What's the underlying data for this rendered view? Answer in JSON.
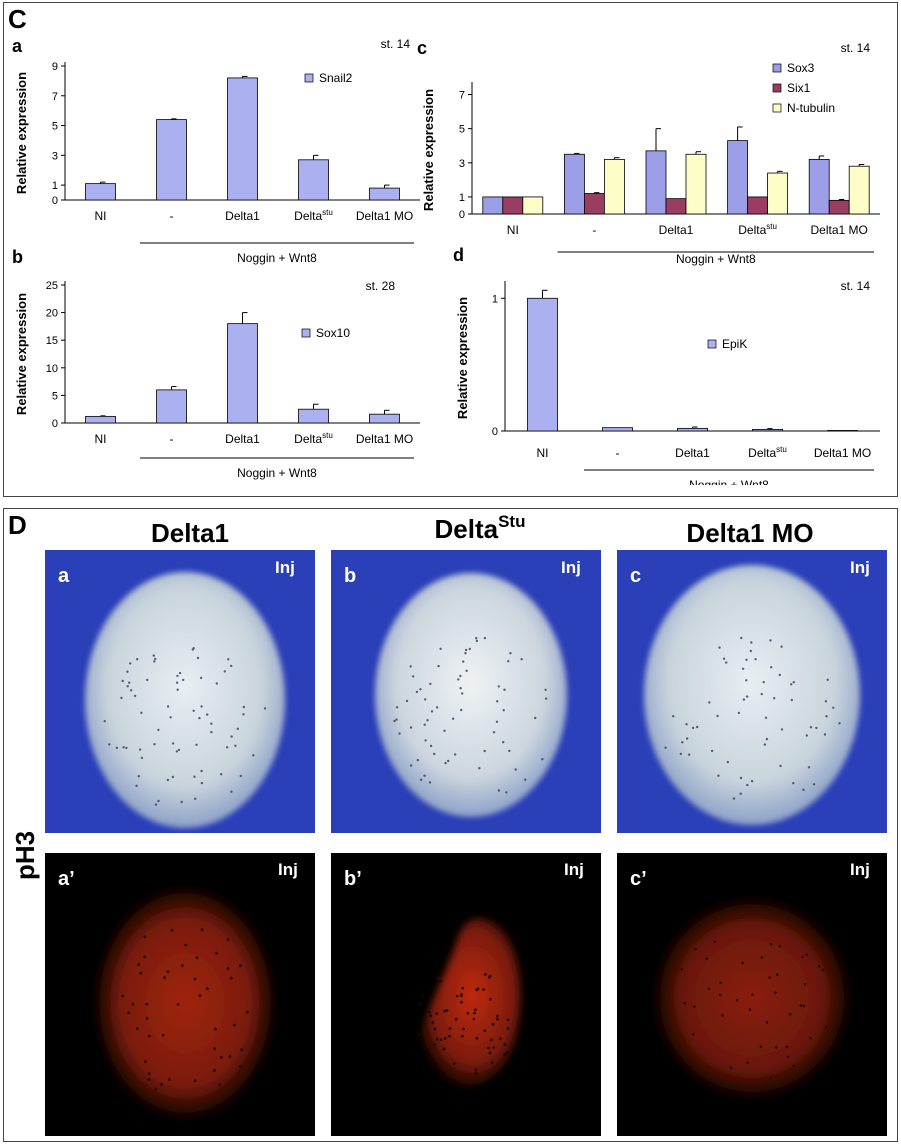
{
  "panel_C": {
    "letter": "C",
    "group_label": "Noggin + Wnt8",
    "ylabel": "Relative expression"
  },
  "panel_D": {
    "letter": "D",
    "row_label": "pH3",
    "inj_label": "Inj",
    "columns": [
      {
        "title": "Delta1",
        "sup": ""
      },
      {
        "title": "Delta",
        "sup": "Stu"
      },
      {
        "title": "Delta1 MO",
        "sup": ""
      }
    ],
    "top_labels": [
      "a",
      "b",
      "c"
    ],
    "bottom_labels": [
      "a’",
      "b’",
      "c’"
    ]
  },
  "chart_data": [
    {
      "id": "a",
      "type": "bar",
      "stage": "st. 14",
      "categories": [
        "NI",
        "-",
        "Delta1",
        "Delta",
        "Delta1 MO"
      ],
      "category_sup": [
        "",
        "",
        "",
        "stu",
        ""
      ],
      "series": [
        {
          "name": "Snail2",
          "values": [
            1.1,
            5.4,
            8.2,
            2.7,
            0.8
          ],
          "errors": [
            0.1,
            0.05,
            0.1,
            0.3,
            0.2
          ]
        }
      ],
      "ylabel": "Relative expression",
      "ylim": [
        0,
        9
      ],
      "yticks": [
        0,
        1,
        3,
        5,
        7,
        9
      ],
      "colors": [
        "#aab0f0"
      ]
    },
    {
      "id": "b",
      "type": "bar",
      "stage": "st. 28",
      "categories": [
        "NI",
        "-",
        "Delta1",
        "Delta",
        "Delta1 MO"
      ],
      "category_sup": [
        "",
        "",
        "",
        "stu",
        ""
      ],
      "series": [
        {
          "name": "Sox10",
          "values": [
            1.2,
            6.0,
            18.0,
            2.5,
            1.6
          ],
          "errors": [
            0.1,
            0.6,
            2.0,
            0.9,
            0.7
          ]
        }
      ],
      "ylabel": "Relative expression",
      "ylim": [
        0,
        25
      ],
      "yticks": [
        0,
        5,
        10,
        15,
        20,
        25
      ],
      "colors": [
        "#aab0f0"
      ]
    },
    {
      "id": "c",
      "type": "bar",
      "stage": "st. 14",
      "categories": [
        "NI",
        "-",
        "Delta1",
        "Delta",
        "Delta1 MO"
      ],
      "category_sup": [
        "",
        "",
        "",
        "stu",
        ""
      ],
      "series": [
        {
          "name": "Sox3",
          "values": [
            1.0,
            3.5,
            3.7,
            4.3,
            3.2
          ],
          "errors": [
            0.0,
            0.05,
            1.3,
            0.8,
            0.2
          ]
        },
        {
          "name": "Six1",
          "values": [
            1.0,
            1.2,
            0.9,
            1.0,
            0.8
          ],
          "errors": [
            0.0,
            0.05,
            0.0,
            0.0,
            0.05
          ]
        },
        {
          "name": "N-tubulin",
          "values": [
            1.0,
            3.2,
            3.5,
            2.4,
            2.8
          ],
          "errors": [
            0.0,
            0.1,
            0.15,
            0.1,
            0.1
          ]
        }
      ],
      "ylabel": "Relative expression",
      "ylim": [
        0,
        7.5
      ],
      "yticks": [
        0,
        1,
        3,
        5,
        7
      ],
      "colors": [
        "#9d9ee8",
        "#9a3d62",
        "#fdfdc8"
      ]
    },
    {
      "id": "d",
      "type": "bar",
      "stage": "st. 14",
      "categories": [
        "NI",
        "-",
        "Delta1",
        "Delta",
        "Delta1 MO"
      ],
      "category_sup": [
        "",
        "",
        "",
        "stu",
        ""
      ],
      "series": [
        {
          "name": "EpiK",
          "values": [
            1.0,
            0.025,
            0.02,
            0.012,
            0.004
          ],
          "errors": [
            0.06,
            0.0,
            0.01,
            0.006,
            0.0
          ]
        }
      ],
      "ylabel": "Relative expression",
      "ylim": [
        0,
        1.1
      ],
      "yticks": [
        0,
        1
      ],
      "colors": [
        "#aab0f0"
      ]
    }
  ]
}
